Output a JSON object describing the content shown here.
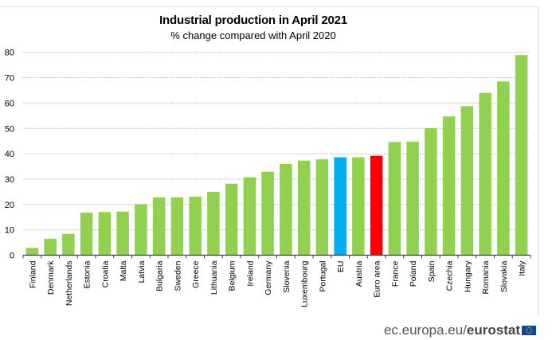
{
  "chart_data": {
    "type": "bar",
    "title": "Industrial production in April 2021",
    "subtitle": "% change compared with April 2020",
    "xlabel": "",
    "ylabel": "",
    "ylim": [
      0,
      80
    ],
    "yticks": [
      0,
      10,
      20,
      30,
      40,
      50,
      60,
      70,
      80
    ],
    "grid": true,
    "categories": [
      "Finland",
      "Denmark",
      "Netherlands",
      "Estonia",
      "Croatia",
      "Malta",
      "Latvia",
      "Bulgaria",
      "Sweden",
      "Greece",
      "Lithuania",
      "Belgium",
      "Ireland",
      "Germany",
      "Slovenia",
      "Luxembourg",
      "Portugal",
      "EU",
      "Austria",
      "Euro area",
      "France",
      "Poland",
      "Spain",
      "Czechia",
      "Hungary",
      "Romania",
      "Slovakia",
      "Italy"
    ],
    "values": [
      2.9,
      6.5,
      8.4,
      16.8,
      17.0,
      17.2,
      20.1,
      22.8,
      22.8,
      23.1,
      25.0,
      28.2,
      30.7,
      32.9,
      36.0,
      37.3,
      37.8,
      38.6,
      38.6,
      39.2,
      44.6,
      44.8,
      50.1,
      54.7,
      58.8,
      64.0,
      68.5,
      78.9
    ],
    "highlight": {
      "EU": "blue",
      "Euro area": "red"
    },
    "colors": {
      "default": "#92D050",
      "blue": "#00B0F0",
      "red": "#FF0000",
      "axis": "#404040",
      "grid": "#c8c8c8"
    }
  },
  "footer": {
    "source_prefix": "ec.europa.eu/",
    "source_brand": "eurostat",
    "logo_icon": "eu-flag-icon"
  }
}
